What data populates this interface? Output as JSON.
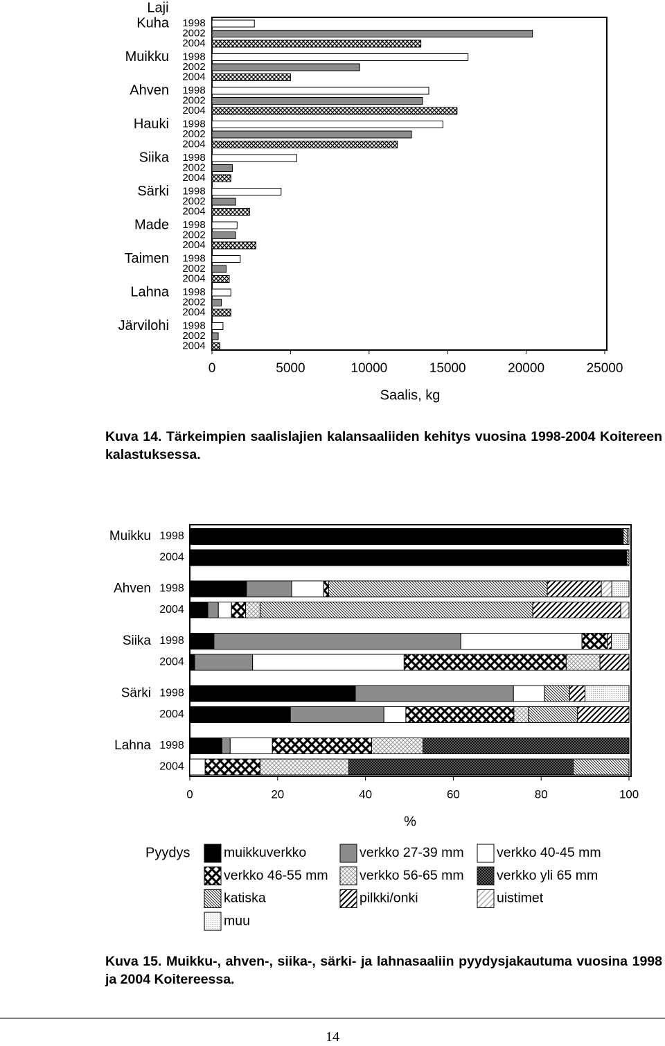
{
  "chart_data": [
    {
      "type": "bar",
      "orientation": "horizontal",
      "category_label": "Laji",
      "categories": [
        "Kuha",
        "Muikku",
        "Ahven",
        "Hauki",
        "Siika",
        "Särki",
        "Made",
        "Taimen",
        "Lahna",
        "Järvilohi"
      ],
      "series": [
        {
          "name": "1998",
          "color": "#ffffff",
          "values": [
            2700,
            16300,
            13800,
            14700,
            5400,
            4400,
            1600,
            1800,
            1200,
            700
          ]
        },
        {
          "name": "2002",
          "color": "#8c8c8c",
          "values": [
            20400,
            9400,
            13400,
            12700,
            1300,
            1500,
            1500,
            900,
            600,
            400
          ]
        },
        {
          "name": "2004",
          "pattern": "xhatch-small",
          "values": [
            13300,
            5000,
            15600,
            11800,
            1200,
            2400,
            2800,
            1100,
            1200,
            500
          ]
        }
      ],
      "xlim": [
        0,
        25000
      ],
      "xticks": [
        0,
        5000,
        10000,
        15000,
        20000,
        25000
      ],
      "xlabel": "Saalis, kg"
    },
    {
      "type": "stacked-bar",
      "orientation": "horizontal",
      "groups": [
        "Muikku",
        "Ahven",
        "Siika",
        "Särki",
        "Lahna"
      ],
      "categories": [
        "1998",
        "2004",
        "1998",
        "2004",
        "1998",
        "2004",
        "1998",
        "2004",
        "1998",
        "2004"
      ],
      "series": [
        {
          "name": "muikkuverkko",
          "color": "#000000",
          "values": [
            98.7,
            99.5,
            12.9,
            4.1,
            5.5,
            1.1,
            37.7,
            22.9,
            7.3,
            0
          ]
        },
        {
          "name": "verkko 27-39 mm",
          "color": "#8c8c8c",
          "values": [
            0,
            0,
            10.3,
            2.4,
            56.2,
            13.2,
            36.0,
            21.3,
            1.9,
            0
          ]
        },
        {
          "name": "verkko 40-45 mm",
          "color": "#ffffff",
          "values": [
            0,
            0,
            7.3,
            3.0,
            27.6,
            34.5,
            7.1,
            5.0,
            9.6,
            3.5
          ]
        },
        {
          "name": "verkko 46-55 mm",
          "pattern": "xhatch-large",
          "values": [
            0,
            0,
            1.1,
            3.2,
            5.8,
            36.9,
            0,
            24.6,
            22.6,
            12.5
          ]
        },
        {
          "name": "verkko 56-65 mm",
          "pattern": "checker-light",
          "values": [
            0,
            0,
            0,
            3.3,
            0,
            7.7,
            0,
            3.3,
            11.7,
            20.2
          ]
        },
        {
          "name": "verkko yli 65 mm",
          "pattern": "checker-dark",
          "values": [
            0,
            0,
            0,
            0,
            0,
            0,
            0,
            0,
            46.9,
            51.1
          ]
        },
        {
          "name": "katiska",
          "pattern": "hatch-back",
          "values": [
            0.9,
            0.5,
            49.8,
            62.1,
            0,
            0,
            5.7,
            11.2,
            0,
            12.7
          ]
        },
        {
          "name": "pilkki/onki",
          "pattern": "hatch-fwd",
          "values": [
            0,
            0,
            12.3,
            20.0,
            0.9,
            6.6,
            3.5,
            11.7,
            0,
            0
          ]
        },
        {
          "name": "uistimet",
          "pattern": "hatch-light",
          "values": [
            0.4,
            0,
            2.4,
            1.9,
            0,
            0,
            0,
            0,
            0,
            0
          ]
        },
        {
          "name": "muu",
          "pattern": "dots",
          "values": [
            0,
            0,
            3.9,
            0,
            4.0,
            0,
            10.0,
            0,
            0,
            0
          ]
        }
      ],
      "xlim": [
        0,
        100
      ],
      "xticks": [
        0,
        20,
        40,
        60,
        80,
        100
      ],
      "xlabel": "%",
      "legend_title": "Pyydys"
    }
  ],
  "captions": [
    "Kuva 14. Tärkeimpien saalislajien kalansaaliiden kehitys vuosina 1998-2004 Koitereen kalastuksessa.",
    "Kuva 15. Muikku-, ahven-, siika-, särki- ja lahnasaaliin pyydysjakautuma vuosina 1998 ja 2004 Koitereessa."
  ],
  "page_number": "14"
}
